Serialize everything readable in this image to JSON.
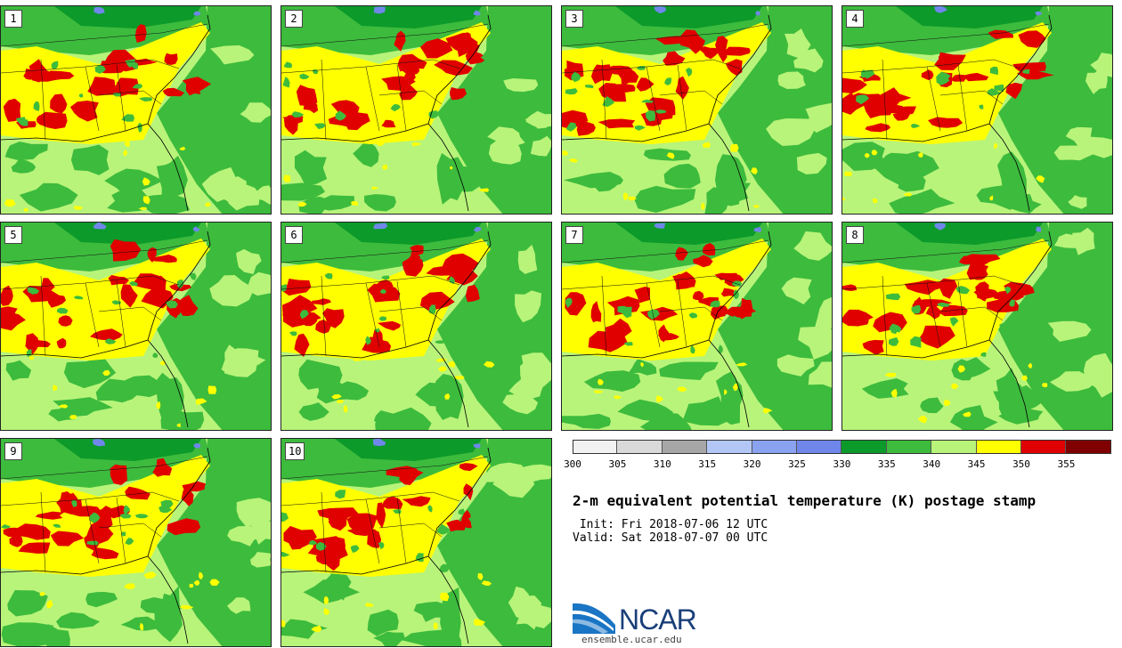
{
  "panels": [
    {
      "label": "1",
      "variant": 0
    },
    {
      "label": "2",
      "variant": 1
    },
    {
      "label": "3",
      "variant": 2
    },
    {
      "label": "4",
      "variant": 3
    },
    {
      "label": "5",
      "variant": 4
    },
    {
      "label": "6",
      "variant": 5
    },
    {
      "label": "7",
      "variant": 6
    },
    {
      "label": "8",
      "variant": 7
    },
    {
      "label": "9",
      "variant": 8
    },
    {
      "label": "10",
      "variant": 9
    }
  ],
  "colorbar": {
    "ticks": [
      "300",
      "305",
      "310",
      "315",
      "320",
      "325",
      "330",
      "335",
      "340",
      "345",
      "350",
      "355"
    ],
    "colors": [
      "#f2f2f2",
      "#d9d9d9",
      "#a6a6a6",
      "#b3c7f7",
      "#8aa3f0",
      "#6f87eb",
      "#0c9a2a",
      "#3dbb3d",
      "#b8f47a",
      "#ffff00",
      "#e00000",
      "#800000"
    ]
  },
  "title": "2-m equivalent potential temperature (K) postage stamp",
  "init": " Init: Fri 2018-07-06 12 UTC",
  "valid": "Valid: Sat 2018-07-07 00 UTC",
  "logo": {
    "name": "NCAR",
    "url": "ensemble.ucar.edu"
  }
}
